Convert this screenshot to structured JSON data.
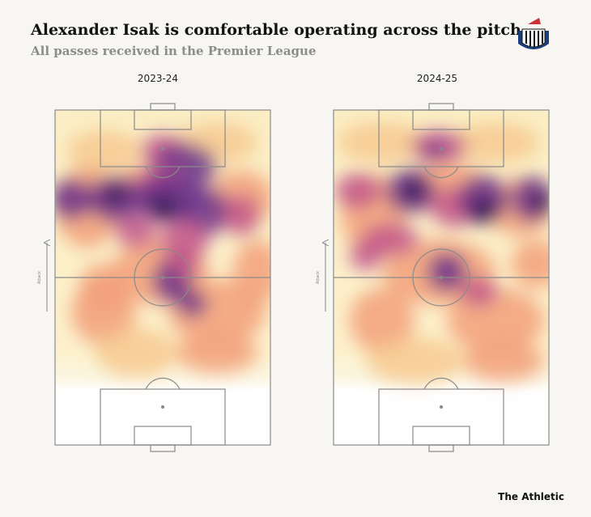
{
  "header": {
    "title": "Alexander Isak is comfortable operating across the pitch",
    "subtitle": "All passes received in the Premier League"
  },
  "panels": [
    {
      "label": "2023-24",
      "direction_label": "Attack"
    },
    {
      "label": "2024-25",
      "direction_label": "Attack"
    }
  ],
  "footer": {
    "brand": "The Athletic"
  }
}
